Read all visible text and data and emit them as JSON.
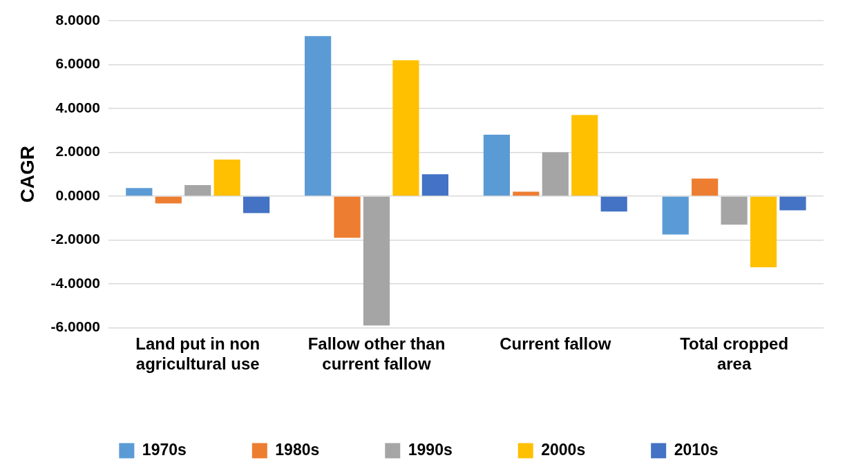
{
  "chart_data": {
    "type": "bar",
    "ylabel": "CAGR",
    "categories": [
      "Land put in non agricultural use",
      "Fallow other than current fallow",
      "Current fallow",
      "Total cropped area"
    ],
    "series": [
      {
        "name": "1970s",
        "color": "#5b9bd5",
        "values": [
          0.37,
          7.3,
          2.8,
          -1.75
        ]
      },
      {
        "name": "1980s",
        "color": "#ed7d31",
        "values": [
          -0.33,
          -1.9,
          0.2,
          0.8
        ]
      },
      {
        "name": "1990s",
        "color": "#a5a5a5",
        "values": [
          0.5,
          -5.9,
          2.0,
          -1.3
        ]
      },
      {
        "name": "2000s",
        "color": "#ffc000",
        "values": [
          1.67,
          6.2,
          3.7,
          -3.25
        ]
      },
      {
        "name": "2010s",
        "color": "#4472c4",
        "values": [
          -0.77,
          1.0,
          -0.7,
          -0.65
        ]
      }
    ],
    "ylim": [
      -6,
      8
    ],
    "yticks": [
      {
        "value": -6,
        "label": "-6.0000"
      },
      {
        "value": -4,
        "label": "-4.0000"
      },
      {
        "value": -2,
        "label": "-2.0000"
      },
      {
        "value": 0,
        "label": "0.0000"
      },
      {
        "value": 2,
        "label": "2.0000"
      },
      {
        "value": 4,
        "label": "4.0000"
      },
      {
        "value": 6,
        "label": "6.0000"
      },
      {
        "value": 8,
        "label": "8.0000"
      }
    ],
    "grid": "y",
    "legend": "bottom"
  }
}
